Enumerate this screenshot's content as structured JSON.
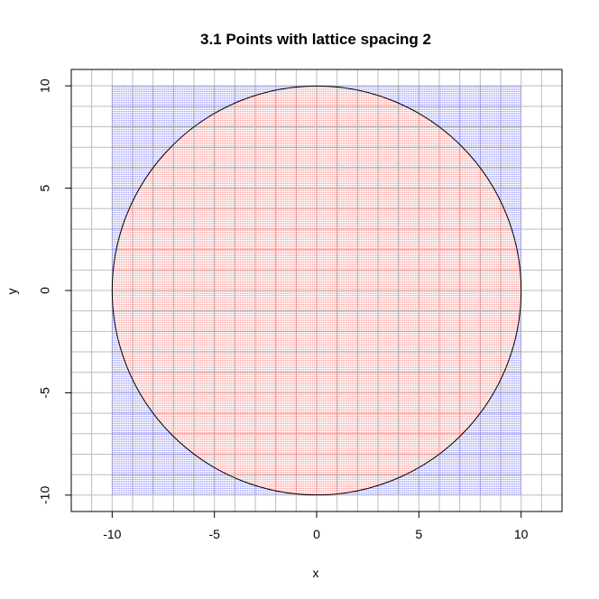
{
  "chart_data": {
    "type": "scatter",
    "title": "3.1 Points with lattice spacing 2",
    "xlabel": "x",
    "ylabel": "y",
    "xlim": [
      -12,
      12
    ],
    "ylim": [
      -10.8,
      10.8
    ],
    "x_ticks": [
      -10,
      -5,
      0,
      5,
      10
    ],
    "y_ticks": [
      -10,
      -5,
      0,
      5,
      10
    ],
    "x_tick_labels": [
      "-10",
      "-5",
      "0",
      "5",
      "10"
    ],
    "y_tick_labels": [
      "-10",
      "-5",
      "0",
      "5",
      "10"
    ],
    "grid": true,
    "grid_step": 1,
    "lattice": {
      "min": -10,
      "max": 10
    },
    "circle": {
      "cx": 0,
      "cy": 0,
      "r": 10
    },
    "series": [
      {
        "color": "#ff0000",
        "rule": "inside circle"
      },
      {
        "color": "#0000ff",
        "rule": "outside circle"
      }
    ],
    "colors": {
      "grid": "#bebebe",
      "circle": "#000000",
      "box": "#000000"
    }
  }
}
